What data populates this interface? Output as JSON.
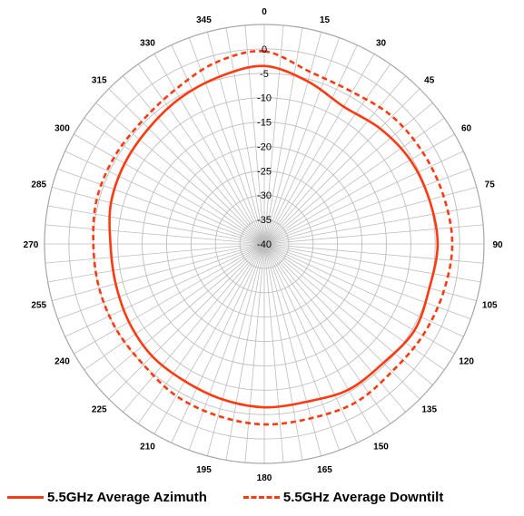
{
  "chart_data": {
    "type": "polar-line",
    "title": "",
    "angle_ticks": [
      "0",
      "15",
      "30",
      "45",
      "60",
      "75",
      "90",
      "105",
      "120",
      "135",
      "150",
      "165",
      "180",
      "195",
      "210",
      "225",
      "240",
      "255",
      "270",
      "285",
      "300",
      "315",
      "330",
      "345"
    ],
    "radial_ticks": [
      "0",
      "-5",
      "-10",
      "-15",
      "-20",
      "-25",
      "-30",
      "-35",
      "-40"
    ],
    "radial_range": [
      -40,
      5
    ],
    "angle_minor_step_deg": 5,
    "grid": true,
    "legend_position": "bottom",
    "series": [
      {
        "name": "5.5GHz Average Azimuth",
        "color": "#ff3a10",
        "dash": "solid",
        "angles": [
          0,
          15,
          30,
          45,
          60,
          75,
          90,
          105,
          120,
          135,
          150,
          165,
          180,
          195,
          210,
          225,
          240,
          255,
          270,
          285,
          300,
          315,
          330,
          345
        ],
        "values": [
          -3.5,
          -5.5,
          -7.5,
          -6.5,
          -5.5,
          -5,
          -4.5,
          -5,
          -4.5,
          -5.5,
          -5.5,
          -6.5,
          -6.5,
          -7,
          -7.5,
          -7.5,
          -8,
          -8.5,
          -8.5,
          -7.5,
          -7,
          -6.5,
          -5.5,
          -4.5
        ]
      },
      {
        "name": "5.5GHz Average Downtilt",
        "color": "#ff3a10",
        "dash": "dashed",
        "angles": [
          0,
          15,
          30,
          45,
          60,
          75,
          90,
          105,
          120,
          135,
          150,
          165,
          180,
          195,
          210,
          225,
          240,
          255,
          270,
          285,
          300,
          315,
          330,
          345
        ],
        "values": [
          -0.5,
          -3.5,
          -4,
          -3,
          -2.5,
          -2,
          -1.5,
          -2,
          -2.5,
          -3,
          -2.5,
          -3,
          -3,
          -3.5,
          -4,
          -5,
          -5,
          -5,
          -5,
          -4.5,
          -4.5,
          -4.5,
          -3.5,
          -1.5
        ]
      }
    ]
  }
}
